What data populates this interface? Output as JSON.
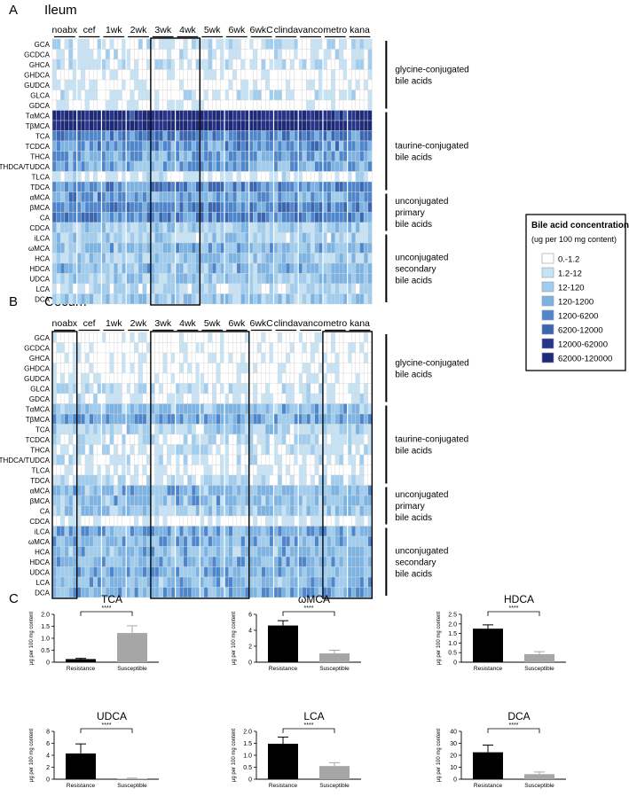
{
  "panels": {
    "A": {
      "letter": "A",
      "title": "Ileum"
    },
    "B": {
      "letter": "B",
      "title": "Cecum"
    },
    "C": {
      "letter": "C"
    }
  },
  "groups_A": [
    "noabx",
    "cef",
    "1wk",
    "2wk",
    "3wk",
    "4wk",
    "5wk",
    "6wk",
    "6wkC",
    "clinda",
    "vanco",
    "metro",
    "kana"
  ],
  "groups_B": [
    "noabx",
    "cef",
    "1wk",
    "2wk",
    "3wk",
    "4wk",
    "5wk",
    "6wk",
    "6wkC",
    "clinda",
    "vanco",
    "metro",
    "kana"
  ],
  "bile_acids": [
    "GCA",
    "GCDCA",
    "GHCA",
    "GHDCA",
    "GUDCA",
    "GLCA",
    "GDCA",
    "TαMCA",
    "TβMCA",
    "TCA",
    "TCDCA",
    "THCA",
    "THDCA/TUDCA",
    "TLCA",
    "TDCA",
    "αMCA",
    "βMCA",
    "CA",
    "CDCA",
    "iLCA",
    "ωMCA",
    "HCA",
    "HDCA",
    "UDCA",
    "LCA",
    "DCA"
  ],
  "categories": [
    {
      "name": "glycine-conjugated bile acids",
      "lines": [
        "glycine-conjugated",
        "bile acids"
      ]
    },
    {
      "name": "taurine-conjugated bile acids",
      "lines": [
        "taurine-conjugated",
        "bile acids"
      ]
    },
    {
      "name": "unconjugated primary bile acids",
      "lines": [
        "unconjugated",
        "primary",
        "bile acids"
      ]
    },
    {
      "name": "unconjugated secondary bile acids",
      "lines": [
        "unconjugated",
        "secondary",
        "bile acids"
      ]
    }
  ],
  "legend": {
    "title": "Bile acid concentration",
    "subtitle": "(ug per 100 mg content)",
    "items": [
      "0.-1.2",
      "1.2-12",
      "12-120",
      "120-1200",
      "1200-6200",
      "6200-12000",
      "12000-62000",
      "62000-120000"
    ],
    "colors": [
      "#ffffff",
      "#c6e3f6",
      "#9fcdef",
      "#7bb3e5",
      "#4d86cc",
      "#3b66b2",
      "#27348b",
      "#1c2a78"
    ]
  },
  "chart_data": [
    {
      "type": "bar",
      "title": "TCA",
      "categories": [
        "Resistance",
        "Susceptible"
      ],
      "values": [
        0.13,
        1.22
      ],
      "errors": [
        0.03,
        0.3
      ],
      "ylabel": "μg per 100 mg content",
      "ylim": [
        0,
        2.0
      ],
      "yticks": [
        "0",
        "0.5",
        "1.0",
        "1.5",
        "2.0"
      ],
      "significance": "****"
    },
    {
      "type": "bar",
      "title": "ωMCA",
      "categories": [
        "Resistance",
        "Susceptible"
      ],
      "values": [
        4.6,
        1.1
      ],
      "errors": [
        0.6,
        0.4
      ],
      "ylabel": "μg per 100 mg content",
      "ylim": [
        0,
        6
      ],
      "yticks": [
        "0",
        "2",
        "4",
        "6"
      ],
      "significance": "****"
    },
    {
      "type": "bar",
      "title": "HDCA",
      "categories": [
        "Resistance",
        "Susceptible"
      ],
      "values": [
        1.75,
        0.42
      ],
      "errors": [
        0.2,
        0.13
      ],
      "ylabel": "μg per 100 mg content",
      "ylim": [
        0,
        2.5
      ],
      "yticks": [
        "0",
        "0.5",
        "1.0",
        "1.5",
        "2.0",
        "2.5"
      ],
      "significance": "****"
    },
    {
      "type": "bar",
      "title": "UDCA",
      "categories": [
        "Resistance",
        "Susceptible"
      ],
      "values": [
        4.3,
        0.1
      ],
      "errors": [
        1.6,
        0.08
      ],
      "ylabel": "μg per 100 mg content",
      "ylim": [
        0,
        8
      ],
      "yticks": [
        "0",
        "2",
        "4",
        "6",
        "8"
      ],
      "significance": "****"
    },
    {
      "type": "bar",
      "title": "LCA",
      "categories": [
        "Resistance",
        "Susceptible"
      ],
      "values": [
        1.48,
        0.55
      ],
      "errors": [
        0.28,
        0.14
      ],
      "ylabel": "μg per 100 mg content",
      "ylim": [
        0,
        2.0
      ],
      "yticks": [
        "0",
        "0.5",
        "1.0",
        "1.5",
        "2.0"
      ],
      "significance": "****"
    },
    {
      "type": "bar",
      "title": "DCA",
      "categories": [
        "Resistance",
        "Susceptible"
      ],
      "values": [
        22.5,
        4.2
      ],
      "errors": [
        6.0,
        1.8
      ],
      "ylabel": "μg per 100 mg content",
      "ylim": [
        0,
        40
      ],
      "yticks": [
        "0",
        "10",
        "20",
        "30",
        "40"
      ],
      "significance": "****"
    }
  ]
}
